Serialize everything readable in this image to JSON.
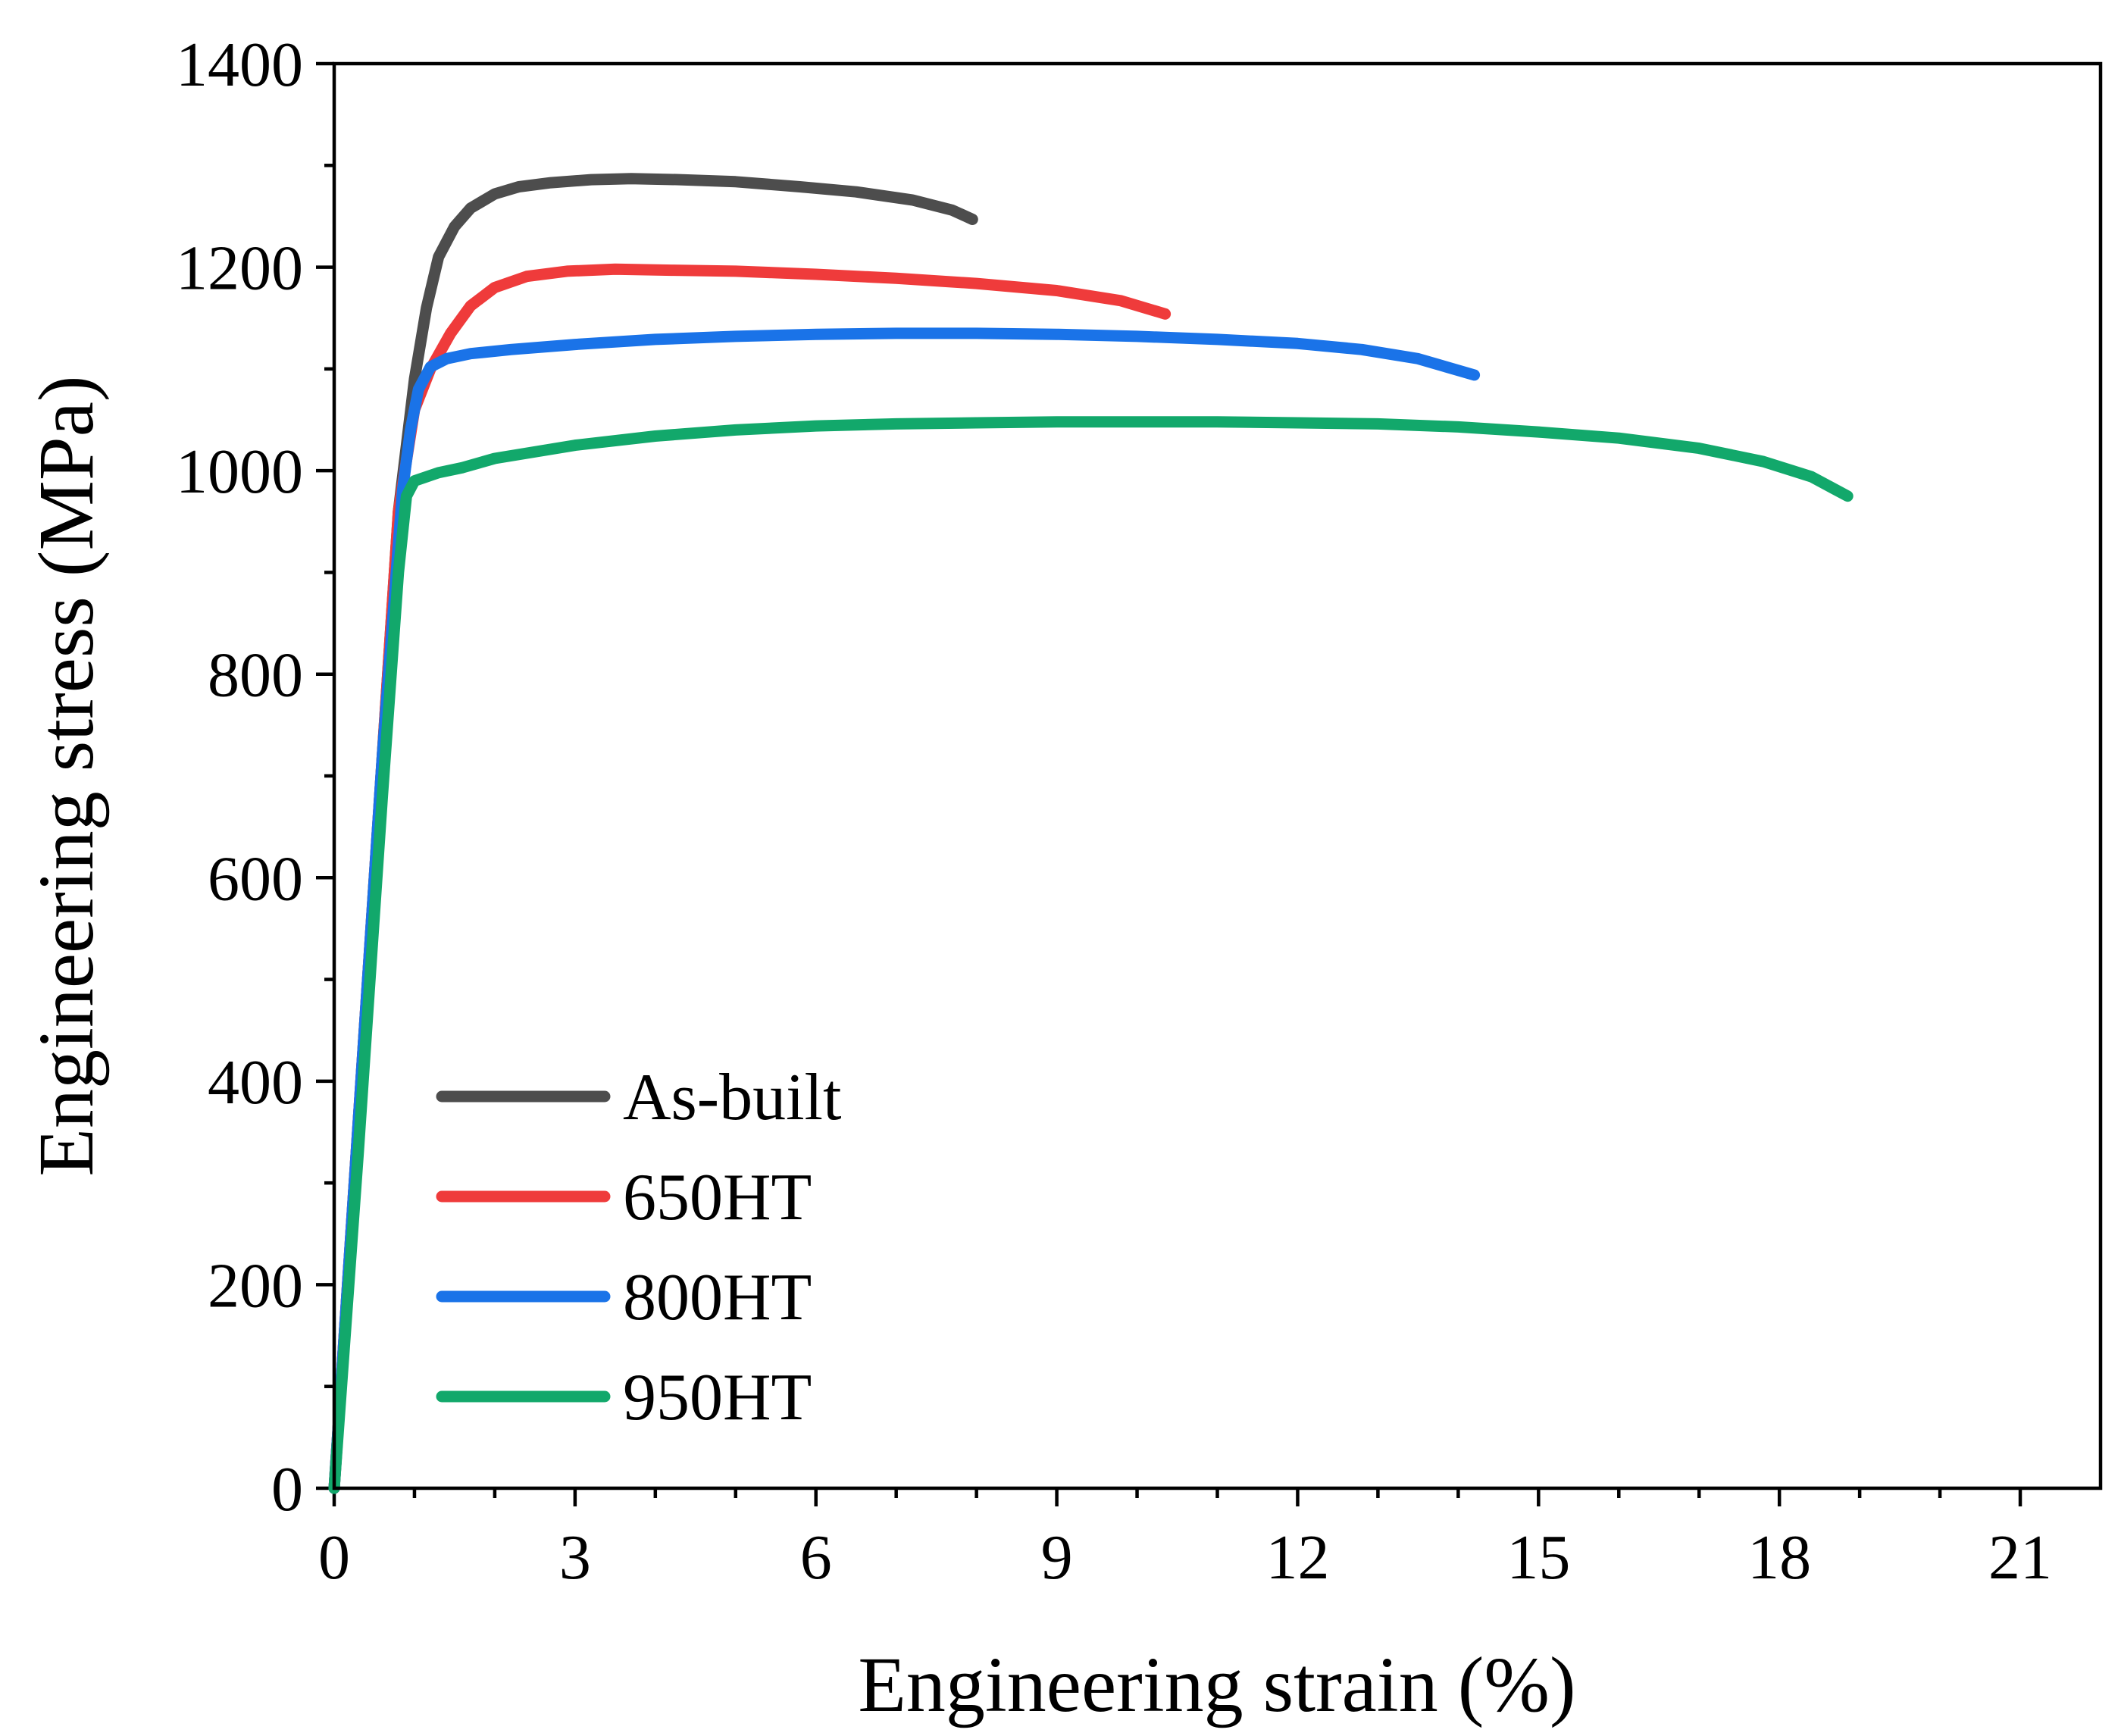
{
  "chart_data": {
    "type": "line",
    "title": "",
    "xlabel": "Engineering strain (%)",
    "ylabel": "Engineering stress (MPa)",
    "xlim": [
      0,
      22
    ],
    "ylim": [
      0,
      1400
    ],
    "x_ticks": [
      0,
      3,
      6,
      9,
      12,
      15,
      18,
      21
    ],
    "y_ticks": [
      0,
      200,
      400,
      600,
      800,
      1000,
      1200,
      1400
    ],
    "x_minor_step": 1,
    "y_minor_step": 100,
    "grid": false,
    "legend_position": "lower-left",
    "series": [
      {
        "name": "As-built",
        "color": "#4d4d4d",
        "x": [
          0.0,
          0.3,
          0.6,
          0.8,
          1.0,
          1.15,
          1.3,
          1.5,
          1.7,
          2.0,
          2.3,
          2.7,
          3.2,
          3.7,
          4.3,
          5.0,
          5.8,
          6.5,
          7.2,
          7.7,
          7.95
        ],
        "y": [
          0,
          360,
          720,
          960,
          1090,
          1160,
          1210,
          1240,
          1258,
          1272,
          1279,
          1283,
          1286,
          1287,
          1286,
          1284,
          1279,
          1274,
          1266,
          1256,
          1247
        ]
      },
      {
        "name": "650HT",
        "color": "#ef3b3b",
        "x": [
          0.0,
          0.3,
          0.6,
          0.8,
          1.0,
          1.2,
          1.45,
          1.7,
          2.0,
          2.4,
          2.9,
          3.5,
          4.2,
          5.0,
          6.0,
          7.0,
          8.0,
          9.0,
          9.8,
          10.35
        ],
        "y": [
          0,
          360,
          720,
          960,
          1060,
          1100,
          1135,
          1162,
          1180,
          1191,
          1196,
          1198,
          1197,
          1196,
          1193,
          1189,
          1184,
          1177,
          1167,
          1154
        ]
      },
      {
        "name": "800HT",
        "color": "#1a73e8",
        "x": [
          0.0,
          0.3,
          0.6,
          0.85,
          0.95,
          1.05,
          1.2,
          1.4,
          1.7,
          2.2,
          3.0,
          4.0,
          5.0,
          6.0,
          7.0,
          8.0,
          9.0,
          10.0,
          11.0,
          12.0,
          12.8,
          13.5,
          14.2
        ],
        "y": [
          0,
          360,
          720,
          980,
          1040,
          1080,
          1102,
          1110,
          1115,
          1119,
          1124,
          1129,
          1132,
          1134,
          1135,
          1135,
          1134,
          1132,
          1129,
          1125,
          1119,
          1110,
          1094
        ]
      },
      {
        "name": "950HT",
        "color": "#12a86b",
        "x": [
          0.0,
          0.3,
          0.6,
          0.8,
          0.9,
          1.0,
          1.3,
          1.6,
          2.0,
          3.0,
          4.0,
          5.0,
          6.0,
          7.0,
          8.0,
          9.0,
          10.0,
          11.0,
          12.0,
          13.0,
          14.0,
          15.0,
          16.0,
          17.0,
          17.8,
          18.4,
          18.85
        ],
        "y": [
          0,
          330,
          680,
          900,
          975,
          990,
          998,
          1003,
          1012,
          1025,
          1034,
          1040,
          1044,
          1046,
          1047,
          1048,
          1048,
          1048,
          1047,
          1046,
          1043,
          1038,
          1032,
          1022,
          1009,
          994,
          975
        ]
      }
    ]
  }
}
